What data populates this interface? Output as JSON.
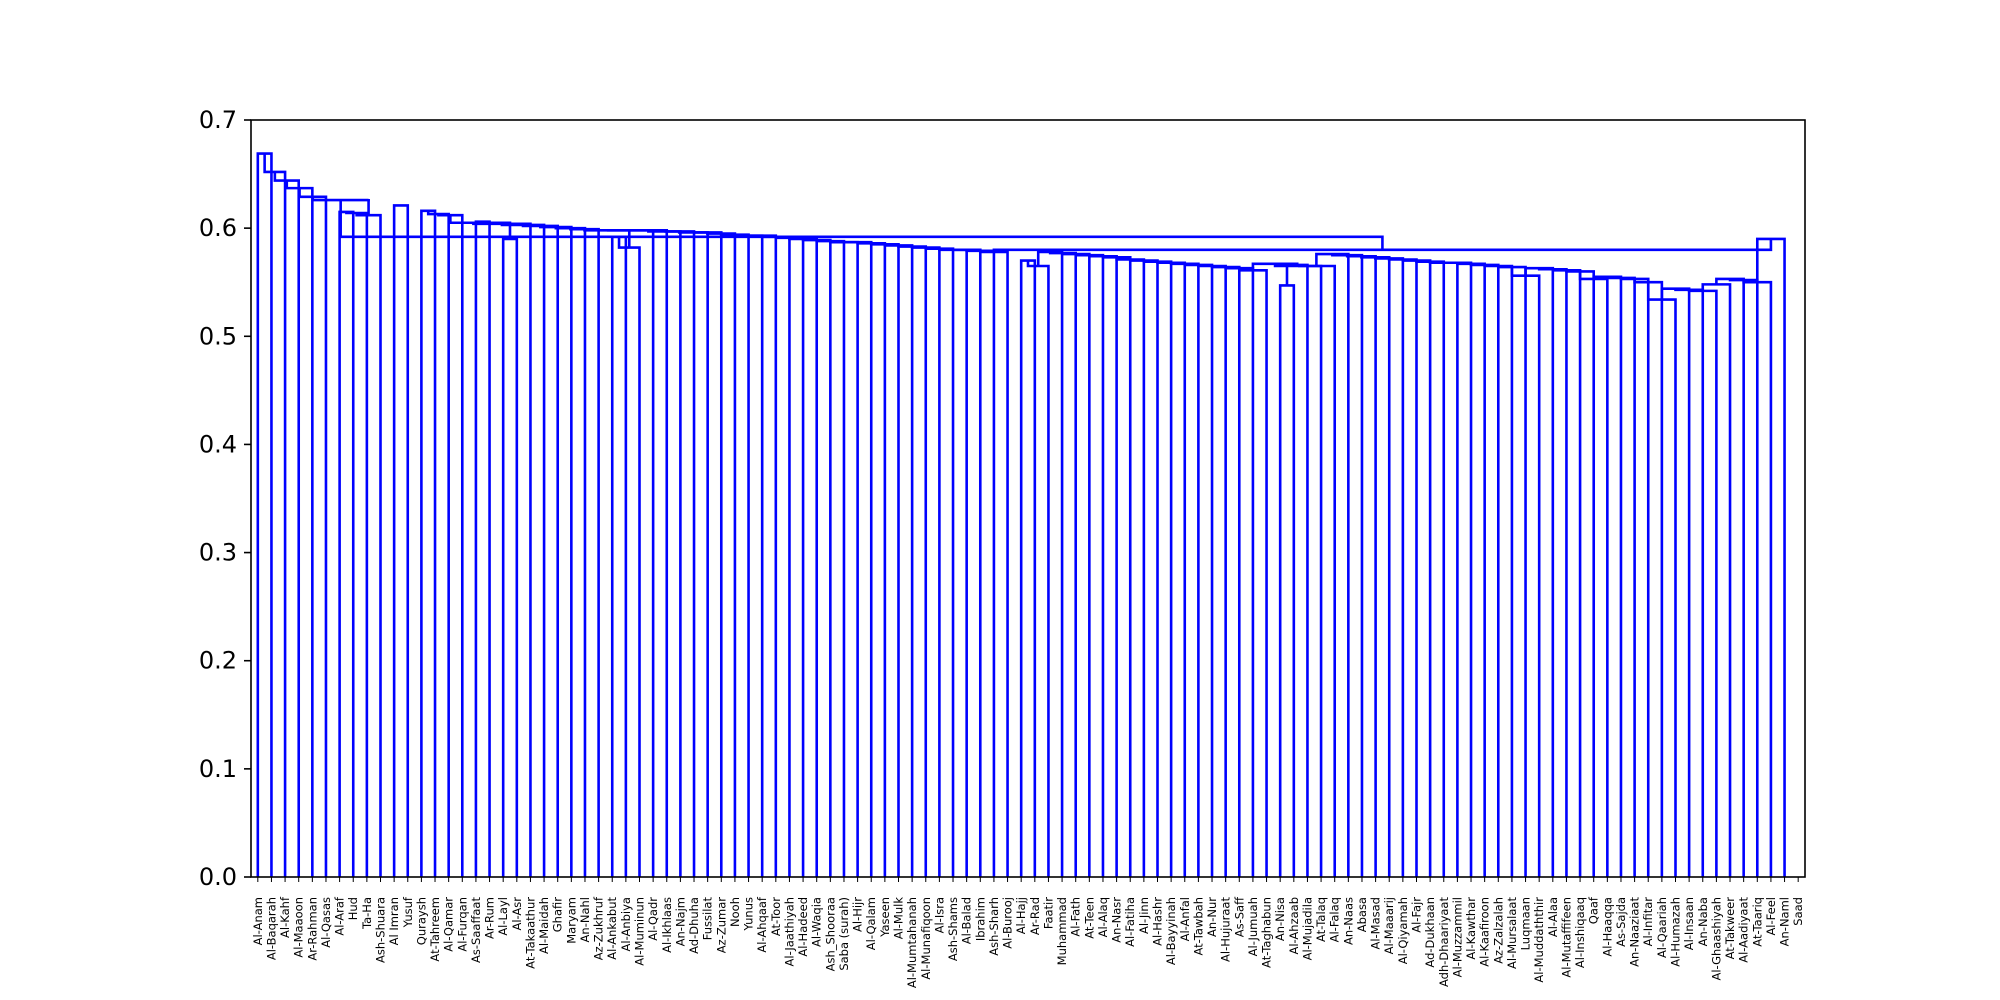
{
  "chart_data": {
    "type": "dendrogram",
    "title": "",
    "xlabel": "",
    "ylabel": "",
    "ylim": [
      0,
      0.7
    ],
    "yticks": [
      "0.0",
      "0.1",
      "0.2",
      "0.3",
      "0.4",
      "0.5",
      "0.6",
      "0.7"
    ],
    "link_color": "#0000ff",
    "grid": false,
    "leaves": [
      "Al-Anam",
      "Al-Baqarah",
      "Al-Kahf",
      "Al-Maaoon",
      "Ar-Rahman",
      "Al-Qasas",
      "Al-Araf",
      "Hud",
      "Ta-Ha",
      "Ash-Shuara",
      "Al Imran",
      "Yusuf",
      "Quraysh",
      "At-Tahreem",
      "Al-Qamar",
      "Al-Furqan",
      "As-Saaffaat",
      "Ar-Rum",
      "Al-Layl",
      "Al-Asr",
      "At-Takaathur",
      "Al-Maidah",
      "Ghafir",
      "Maryam",
      "An-Nahl",
      "Az-Zukhruf",
      "Al-Ankabut",
      "Al-Anbiya",
      "Al-Muminun",
      "Al-Qadr",
      "Al-Ikhlaas",
      "An-Najm",
      "Ad-Dhuha",
      "Fussilat",
      "Az-Zumar",
      "Nooh",
      "Yunus",
      "Al-Ahqaaf",
      "At-Toor",
      "Al-Jaathiyah",
      "Al-Hadeed",
      "Al-Waqia",
      "Ash_Shooraa",
      "Saba (surah)",
      "Al-Hijr",
      "Al-Qalam",
      "Yaseen",
      "Al-Mulk",
      "Al-Mumtahanah",
      "Al-Munafiqoon",
      "Al-Isra",
      "Ash-Shams",
      "Al-Balad",
      "Ibrahim",
      "Ash-Sharh",
      "Al-Burooj",
      "Al-Hajj",
      "Ar-Rad",
      "Faatir",
      "Muhammad",
      "Al-Fath",
      "At-Teen",
      "Al-Alaq",
      "An-Nasr",
      "Al-Fatiha",
      "Al-Jinn",
      "Al-Hashr",
      "Al-Bayyinah",
      "Al-Anfal",
      "At-Tawbah",
      "An-Nur",
      "Al-Hujuraat",
      "As-Saff",
      "Al-Jumuah",
      "At-Taghabun",
      "An-Nisa",
      "Al-Ahzaab",
      "Al-Mujadila",
      "At-Talaq",
      "Al-Falaq",
      "An-Naas",
      "Abasa",
      "Al-Masad",
      "Al-Maaarij",
      "Al-Qiyamah",
      "Al-Fajr",
      "Ad-Dukhaan",
      "Adh-Dhaariyaat",
      "Al-Muzzammil",
      "Al-Kawthar",
      "Al-Kaafiroon",
      "Az-Zalzalah",
      "Al-Mursalaat",
      "Luqmaan",
      "Al-Muddaththir",
      "Al-Alaa",
      "Al-Mutaffifeen",
      "Al-Inshiqaaq",
      "Qaaf",
      "Al-Haaqqa",
      "As-Sajda",
      "An-Naaziaat",
      "Al-Infitar",
      "Al-Qaariah",
      "Al-Humazah",
      "Al-Insaan",
      "An-Naba",
      "Al-Ghaashiyah",
      "At-Takweer",
      "Al-Aadiyaat",
      "At-Taariq",
      "Al-Feel",
      "An-Naml",
      "Saad"
    ],
    "links": [
      [
        0,
        1,
        0.669
      ],
      [
        1,
        2,
        0.652
      ],
      [
        2,
        3,
        0.644
      ],
      [
        3,
        4,
        0.637
      ],
      [
        4,
        5,
        0.629
      ],
      [
        6,
        7,
        0.615
      ],
      [
        7,
        8,
        0.614
      ],
      [
        8,
        9,
        0.612
      ],
      [
        6,
        9,
        0.627
      ],
      [
        10,
        11,
        0.621
      ],
      [
        5,
        6,
        0.626
      ],
      [
        12,
        13,
        0.616
      ],
      [
        13,
        14,
        0.613
      ],
      [
        14,
        15,
        0.612
      ],
      [
        16,
        17,
        0.606
      ],
      [
        18,
        19,
        0.59
      ],
      [
        17,
        18,
        0.605
      ],
      [
        15,
        16,
        0.605
      ],
      [
        19,
        20,
        0.604
      ],
      [
        20,
        21,
        0.603
      ],
      [
        21,
        22,
        0.602
      ],
      [
        22,
        23,
        0.601
      ],
      [
        23,
        24,
        0.6
      ],
      [
        24,
        25,
        0.599
      ],
      [
        26,
        27,
        0.592
      ],
      [
        27,
        28,
        0.582
      ],
      [
        25,
        26,
        0.598
      ],
      [
        28,
        29,
        0.598
      ],
      [
        29,
        30,
        0.598
      ],
      [
        30,
        31,
        0.597
      ],
      [
        31,
        32,
        0.597
      ],
      [
        32,
        33,
        0.596
      ],
      [
        33,
        34,
        0.596
      ],
      [
        34,
        35,
        0.595
      ],
      [
        35,
        36,
        0.594
      ],
      [
        36,
        37,
        0.593
      ],
      [
        37,
        38,
        0.593
      ],
      [
        38,
        39,
        0.592
      ],
      [
        39,
        40,
        0.591
      ],
      [
        40,
        41,
        0.59
      ],
      [
        41,
        42,
        0.589
      ],
      [
        42,
        43,
        0.588
      ],
      [
        43,
        44,
        0.587
      ],
      [
        44,
        45,
        0.587
      ],
      [
        45,
        46,
        0.586
      ],
      [
        46,
        47,
        0.585
      ],
      [
        47,
        48,
        0.584
      ],
      [
        48,
        49,
        0.583
      ],
      [
        49,
        50,
        0.582
      ],
      [
        50,
        51,
        0.581
      ],
      [
        51,
        52,
        0.58
      ],
      [
        52,
        53,
        0.58
      ],
      [
        53,
        54,
        0.579
      ],
      [
        54,
        55,
        0.578
      ],
      [
        56,
        57,
        0.57
      ],
      [
        57,
        58,
        0.565
      ],
      [
        58,
        59,
        0.578
      ],
      [
        59,
        60,
        0.577
      ],
      [
        60,
        61,
        0.576
      ],
      [
        61,
        62,
        0.575
      ],
      [
        62,
        63,
        0.574
      ],
      [
        63,
        64,
        0.573
      ],
      [
        64,
        65,
        0.571
      ],
      [
        65,
        66,
        0.57
      ],
      [
        66,
        67,
        0.569
      ],
      [
        67,
        68,
        0.568
      ],
      [
        68,
        69,
        0.567
      ],
      [
        69,
        70,
        0.566
      ],
      [
        70,
        71,
        0.565
      ],
      [
        71,
        72,
        0.564
      ],
      [
        72,
        73,
        0.563
      ],
      [
        73,
        74,
        0.561
      ],
      [
        75,
        76,
        0.547
      ],
      [
        76,
        77,
        0.566
      ],
      [
        74,
        75,
        0.567
      ],
      [
        77,
        78,
        0.565
      ],
      [
        78,
        79,
        0.565
      ],
      [
        79,
        80,
        0.576
      ],
      [
        80,
        81,
        0.575
      ],
      [
        81,
        82,
        0.574
      ],
      [
        82,
        83,
        0.573
      ],
      [
        83,
        84,
        0.572
      ],
      [
        84,
        85,
        0.571
      ],
      [
        85,
        86,
        0.57
      ],
      [
        86,
        87,
        0.569
      ],
      [
        87,
        88,
        0.568
      ],
      [
        88,
        89,
        0.568
      ],
      [
        89,
        90,
        0.567
      ],
      [
        90,
        91,
        0.566
      ],
      [
        91,
        92,
        0.565
      ],
      [
        92,
        93,
        0.564
      ],
      [
        93,
        94,
        0.556
      ],
      [
        94,
        95,
        0.563
      ],
      [
        95,
        96,
        0.562
      ],
      [
        96,
        97,
        0.561
      ],
      [
        97,
        98,
        0.56
      ],
      [
        98,
        99,
        0.553
      ],
      [
        99,
        100,
        0.555
      ],
      [
        100,
        101,
        0.554
      ],
      [
        101,
        102,
        0.553
      ],
      [
        102,
        103,
        0.55
      ],
      [
        103,
        104,
        0.534
      ],
      [
        104,
        105,
        0.544
      ],
      [
        105,
        106,
        0.543
      ],
      [
        106,
        107,
        0.542
      ],
      [
        107,
        108,
        0.548
      ],
      [
        108,
        109,
        0.553
      ],
      [
        109,
        110,
        0.552
      ],
      [
        110,
        111,
        0.55
      ],
      [
        111,
        112,
        0.59
      ],
      [
        55,
        56,
        0.58
      ],
      [
        0,
        55,
        0.592
      ]
    ]
  }
}
